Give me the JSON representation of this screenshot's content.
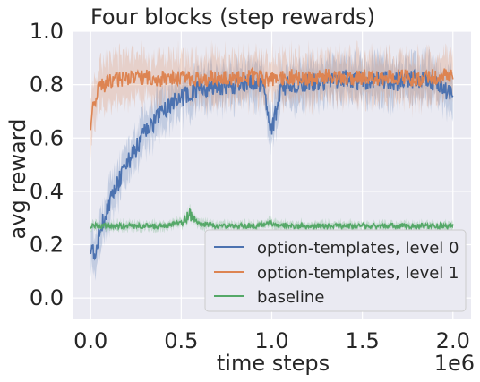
{
  "chart_data": {
    "type": "line",
    "title": "Four blocks (step rewards)",
    "xlabel": "time steps",
    "ylabel": "avg reward",
    "x_offset_label": "1e6",
    "xlim": [
      -0.1,
      2.1
    ],
    "ylim": [
      -0.08,
      1.0
    ],
    "xticks": [
      0.0,
      0.5,
      1.0,
      1.5,
      2.0
    ],
    "xtick_labels": [
      "0.0",
      "0.5",
      "1.0",
      "1.5",
      "2.0"
    ],
    "yticks": [
      0.0,
      0.2,
      0.4,
      0.6,
      0.8,
      1.0
    ],
    "ytick_labels": [
      "0.0",
      "0.2",
      "0.4",
      "0.6",
      "0.8",
      "1.0"
    ],
    "grid": true,
    "legend_position": "lower-right",
    "series": [
      {
        "name": "option-templates, level 0",
        "color": "#4c72b0",
        "x": [
          0.0,
          0.02,
          0.05,
          0.1,
          0.15,
          0.2,
          0.25,
          0.3,
          0.35,
          0.4,
          0.45,
          0.5,
          0.55,
          0.6,
          0.7,
          0.8,
          0.85,
          0.9,
          0.95,
          1.0,
          1.05,
          1.1,
          1.2,
          1.3,
          1.4,
          1.5,
          1.6,
          1.7,
          1.8,
          1.9,
          2.0
        ],
        "y": [
          0.2,
          0.16,
          0.25,
          0.35,
          0.43,
          0.5,
          0.56,
          0.62,
          0.66,
          0.7,
          0.73,
          0.75,
          0.77,
          0.78,
          0.79,
          0.8,
          0.8,
          0.81,
          0.8,
          0.62,
          0.79,
          0.8,
          0.81,
          0.81,
          0.82,
          0.81,
          0.82,
          0.81,
          0.82,
          0.81,
          0.76
        ]
      },
      {
        "name": "option-templates, level 1",
        "color": "#dd8452",
        "x": [
          0.0,
          0.02,
          0.05,
          0.1,
          0.15,
          0.2,
          0.3,
          0.4,
          0.5,
          0.6,
          0.7,
          0.8,
          0.9,
          1.0,
          1.1,
          1.2,
          1.3,
          1.4,
          1.5,
          1.6,
          1.7,
          1.8,
          1.9,
          2.0
        ],
        "y": [
          0.66,
          0.74,
          0.79,
          0.81,
          0.82,
          0.82,
          0.83,
          0.82,
          0.83,
          0.82,
          0.83,
          0.82,
          0.83,
          0.82,
          0.83,
          0.82,
          0.83,
          0.82,
          0.83,
          0.82,
          0.83,
          0.82,
          0.83,
          0.84
        ]
      },
      {
        "name": "baseline",
        "color": "#55a868",
        "x": [
          0.0,
          0.1,
          0.2,
          0.3,
          0.4,
          0.5,
          0.55,
          0.6,
          0.7,
          0.8,
          0.9,
          1.0,
          1.1,
          1.2,
          1.3,
          1.4,
          1.5,
          1.6,
          1.7,
          1.8,
          1.9,
          2.0
        ],
        "y": [
          0.27,
          0.27,
          0.27,
          0.27,
          0.27,
          0.28,
          0.31,
          0.28,
          0.27,
          0.27,
          0.27,
          0.28,
          0.27,
          0.27,
          0.27,
          0.27,
          0.27,
          0.27,
          0.27,
          0.27,
          0.27,
          0.27
        ]
      }
    ]
  },
  "colors": {
    "plot_background": "#eaeaf2",
    "grid": "#ffffff",
    "legend_background": "#eaeaf2",
    "legend_border": "#cccccc"
  }
}
